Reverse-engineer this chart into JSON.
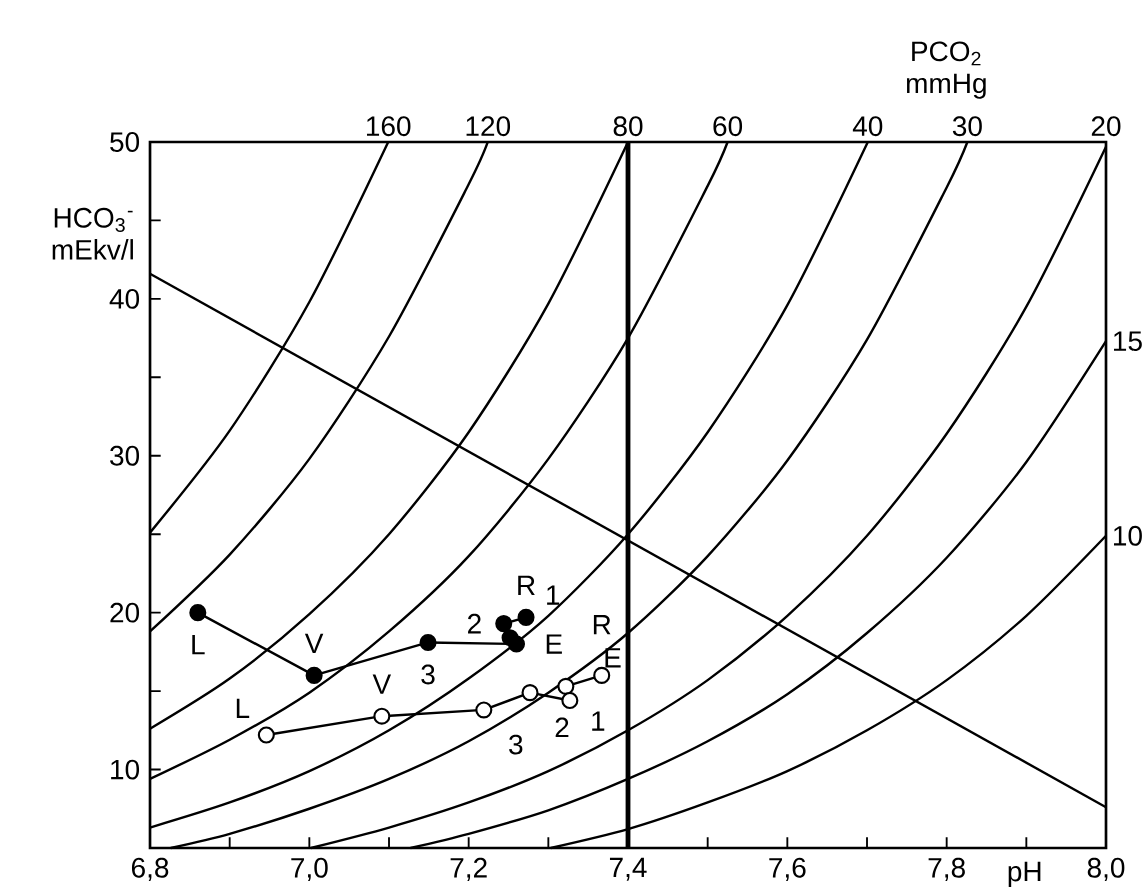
{
  "chart_data": {
    "type": "line",
    "xlabel": "pH",
    "ylabel": "HCO$_{3}$$^{-}$ mEkv/l",
    "xlim": [
      6.8,
      8.0
    ],
    "ylim": [
      5,
      50
    ],
    "xticks": [
      {
        "value": 6.8,
        "label": "6,8"
      },
      {
        "value": 6.9,
        "label": null
      },
      {
        "value": 7.0,
        "label": "7,0"
      },
      {
        "value": 7.1,
        "label": null
      },
      {
        "value": 7.2,
        "label": "7,2"
      },
      {
        "value": 7.3,
        "label": null
      },
      {
        "value": 7.4,
        "label": "7,4"
      },
      {
        "value": 7.5,
        "label": null
      },
      {
        "value": 7.6,
        "label": "7,6"
      },
      {
        "value": 7.7,
        "label": null
      },
      {
        "value": 7.8,
        "label": "7,8"
      },
      {
        "value": 7.9,
        "label": null
      },
      {
        "value": 8.0,
        "label": "8,0"
      }
    ],
    "yticks": [
      10,
      {
        "value": 15,
        "label": null
      },
      20,
      {
        "value": 25,
        "label": null
      },
      30,
      {
        "value": 35,
        "label": null
      },
      40,
      {
        "value": 45,
        "label": null
      },
      50
    ],
    "series": [
      {
        "name": "160",
        "color": "#000000",
        "x": [
          6.8,
          6.9,
          7.0,
          7.099
        ],
        "values": [
          25.1,
          31.6,
          39.8,
          50
        ]
      },
      {
        "name": "120",
        "color": "#000000",
        "x": [
          6.8,
          6.9,
          7.0,
          7.1,
          7.2,
          7.224
        ],
        "values": [
          18.8,
          23.7,
          29.8,
          37.6,
          47.3,
          50
        ]
      },
      {
        "name": "80",
        "color": "#000000",
        "x": [
          6.8,
          6.9,
          7.0,
          7.1,
          7.2,
          7.3,
          7.4
        ],
        "values": [
          12.6,
          15.8,
          19.9,
          25.0,
          31.5,
          39.7,
          50
        ]
      },
      {
        "name": "60",
        "color": "#000000",
        "x": [
          6.8,
          6.9,
          7.0,
          7.1,
          7.2,
          7.3,
          7.4,
          7.5,
          7.525
        ],
        "values": [
          9.4,
          11.9,
          14.9,
          18.8,
          23.6,
          29.8,
          37.5,
          47.2,
          50
        ]
      },
      {
        "name": "40",
        "color": "#000000",
        "x": [
          6.8,
          6.9,
          7.0,
          7.1,
          7.2,
          7.3,
          7.4,
          7.5,
          7.6,
          7.701
        ],
        "values": [
          6.3,
          7.9,
          9.9,
          12.5,
          15.8,
          19.8,
          25.0,
          31.5,
          39.6,
          50
        ]
      },
      {
        "name": "30",
        "color": "#000000",
        "x": [
          6.826,
          6.9,
          7.0,
          7.1,
          7.2,
          7.3,
          7.4,
          7.5,
          7.6,
          7.7,
          7.8,
          7.826
        ],
        "values": [
          5,
          5.9,
          7.5,
          9.4,
          11.8,
          14.9,
          18.7,
          23.6,
          29.7,
          37.4,
          47.1,
          50
        ]
      },
      {
        "name": "20",
        "color": "#000000",
        "x": [
          7.002,
          7.1,
          7.2,
          7.3,
          7.4,
          7.5,
          7.6,
          7.7,
          7.8,
          7.9,
          8.0
        ],
        "values": [
          5,
          6.3,
          7.9,
          9.9,
          12.5,
          15.7,
          19.8,
          24.9,
          31.4,
          39.5,
          49.7
        ]
      },
      {
        "name": "15",
        "color": "#000000",
        "x": [
          7.127,
          7.2,
          7.3,
          7.4,
          7.5,
          7.6,
          7.7,
          7.8,
          7.9,
          8.0
        ],
        "values": [
          5,
          5.9,
          7.4,
          9.4,
          11.8,
          14.8,
          18.7,
          23.5,
          29.6,
          37.3
        ]
      },
      {
        "name": "10",
        "color": "#000000",
        "x": [
          7.303,
          7.4,
          7.5,
          7.6,
          7.7,
          7.8,
          7.9,
          8.0
        ],
        "values": [
          5,
          6.2,
          7.9,
          9.9,
          12.5,
          15.7,
          19.8,
          24.9
        ]
      },
      {
        "color": "#000000",
        "x": [
          6.8,
          8.0
        ],
        "values": [
          41.6,
          7.6
        ]
      },
      {
        "color": "#000000",
        "marker": "circle",
        "x": [
          7.272,
          7.244,
          7.252,
          7.26,
          7.149,
          7.006,
          6.86
        ],
        "values": [
          19.7,
          19.3,
          18.4,
          18.0,
          18.1,
          16.0,
          20.0
        ]
      },
      {
        "color": "#ffffff",
        "marker": "circle",
        "x": [
          7.367,
          7.322,
          7.327,
          7.277,
          7.219,
          7.091,
          6.946
        ],
        "values": [
          16.0,
          15.3,
          14.4,
          14.9,
          13.8,
          13.4,
          12.2
        ]
      }
    ],
    "ref_lines": [
      {
        "axis": "x",
        "value": 7.4
      }
    ],
    "annotations": [
      "PCO$_{2}$ mmHg",
      {
        "text": "L",
        "x": 6.86,
        "y": 20.0
      },
      {
        "text": "V",
        "x": 7.006,
        "y": 16.0
      },
      {
        "text": "3",
        "x": 7.149,
        "y": 18.1
      },
      {
        "text": "E",
        "x": 7.26,
        "y": 18.0
      },
      {
        "text": "2",
        "x": 7.244,
        "y": 19.3
      },
      {
        "text": "R",
        "x": 7.272,
        "y": 19.7
      },
      {
        "text": "1",
        "x": 7.252,
        "y": 18.4
      },
      {
        "text": "L",
        "x": 6.946,
        "y": 12.2
      },
      {
        "text": "V",
        "x": 7.091,
        "y": 13.4
      },
      {
        "text": "3",
        "x": 7.219,
        "y": 13.8
      },
      {
        "text": "2",
        "x": 7.277,
        "y": 14.9
      },
      {
        "text": "1",
        "x": 7.322,
        "y": 15.3
      },
      {
        "text": "E",
        "x": 7.327,
        "y": 14.4
      },
      {
        "text": "R",
        "x": 7.367,
        "y": 16.0
      }
    ]
  }
}
